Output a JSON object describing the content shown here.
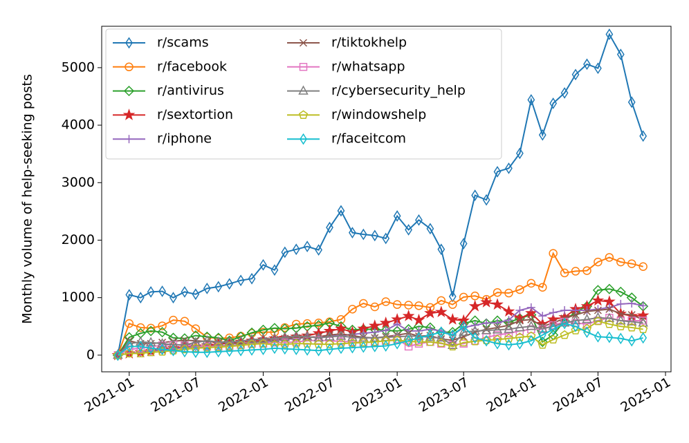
{
  "chart_data": {
    "type": "line",
    "y_label": "Monthly volume of help-seeking posts",
    "x": [
      "2020-12",
      "2021-01",
      "2021-02",
      "2021-03",
      "2021-04",
      "2021-05",
      "2021-06",
      "2021-07",
      "2021-08",
      "2021-09",
      "2021-10",
      "2021-11",
      "2021-12",
      "2022-01",
      "2022-02",
      "2022-03",
      "2022-04",
      "2022-05",
      "2022-06",
      "2022-07",
      "2022-08",
      "2022-09",
      "2022-10",
      "2022-11",
      "2022-12",
      "2023-01",
      "2023-02",
      "2023-03",
      "2023-04",
      "2023-05",
      "2023-06",
      "2023-07",
      "2023-08",
      "2023-09",
      "2023-10",
      "2023-11",
      "2023-12",
      "2024-01",
      "2024-02",
      "2024-03",
      "2024-04",
      "2024-05",
      "2024-06",
      "2024-07",
      "2024-08",
      "2024-09",
      "2024-10",
      "2024-11"
    ],
    "xlim": [
      "2020-10-18",
      "2025-01-16"
    ],
    "xticks": [
      "2021-01",
      "2021-07",
      "2022-01",
      "2022-07",
      "2023-01",
      "2023-07",
      "2024-01",
      "2024-07",
      "2025-01"
    ],
    "ylim": [
      -290,
      5720
    ],
    "yticks": [
      0,
      1000,
      2000,
      3000,
      4000,
      5000
    ],
    "legend_position": "upper left",
    "legend_columns": 2,
    "series": [
      {
        "name": "r/scams",
        "color": "#1f77b4",
        "marker": "d",
        "values": [
          0,
          1050,
          1000,
          1100,
          1110,
          1000,
          1100,
          1060,
          1160,
          1190,
          1240,
          1300,
          1330,
          1570,
          1480,
          1790,
          1840,
          1890,
          1830,
          2220,
          2510,
          2130,
          2100,
          2080,
          2030,
          2420,
          2180,
          2350,
          2200,
          1840,
          1020,
          1940,
          2780,
          2700,
          3190,
          3250,
          3510,
          4440,
          3830,
          4380,
          4560,
          4880,
          5060,
          4990,
          5580,
          5230,
          4400,
          3810
        ]
      },
      {
        "name": "r/facebook",
        "color": "#ff7f0e",
        "marker": "o",
        "values": [
          0,
          550,
          480,
          470,
          510,
          610,
          590,
          460,
          310,
          290,
          300,
          330,
          380,
          400,
          400,
          480,
          540,
          550,
          560,
          580,
          620,
          800,
          900,
          840,
          930,
          880,
          870,
          860,
          830,
          950,
          880,
          1010,
          1030,
          970,
          1090,
          1080,
          1140,
          1250,
          1180,
          1770,
          1430,
          1460,
          1470,
          1620,
          1700,
          1620,
          1590,
          1540
        ]
      },
      {
        "name": "r/antivirus",
        "color": "#2ca02c",
        "marker": "D",
        "values": [
          0,
          310,
          380,
          420,
          400,
          300,
          290,
          340,
          320,
          300,
          250,
          320,
          390,
          440,
          470,
          460,
          470,
          500,
          520,
          560,
          500,
          440,
          450,
          450,
          430,
          420,
          450,
          500,
          480,
          400,
          400,
          550,
          600,
          550,
          600,
          570,
          640,
          700,
          230,
          350,
          600,
          750,
          850,
          1130,
          1150,
          1100,
          1000,
          850
        ]
      },
      {
        "name": "r/sextortion",
        "color": "#d62728",
        "marker": "*",
        "values": [
          0,
          30,
          50,
          70,
          100,
          120,
          150,
          150,
          170,
          190,
          210,
          230,
          250,
          270,
          290,
          300,
          320,
          340,
          380,
          420,
          460,
          400,
          460,
          510,
          560,
          620,
          680,
          610,
          730,
          750,
          620,
          600,
          850,
          920,
          880,
          760,
          640,
          730,
          540,
          620,
          660,
          800,
          850,
          950,
          930,
          720,
          680,
          690
        ]
      },
      {
        "name": "r/iphone",
        "color": "#9467bd",
        "marker": "+",
        "values": [
          0,
          30,
          50,
          70,
          90,
          110,
          130,
          140,
          150,
          160,
          170,
          180,
          200,
          220,
          250,
          270,
          290,
          310,
          320,
          330,
          340,
          360,
          380,
          400,
          430,
          540,
          420,
          420,
          450,
          420,
          350,
          480,
          520,
          560,
          560,
          610,
          780,
          830,
          680,
          740,
          780,
          780,
          780,
          800,
          830,
          890,
          900,
          860
        ]
      },
      {
        "name": "r/tiktokhelp",
        "color": "#8c564b",
        "marker": "x",
        "values": [
          0,
          250,
          200,
          200,
          220,
          240,
          260,
          250,
          240,
          220,
          210,
          200,
          220,
          250,
          270,
          290,
          300,
          310,
          320,
          350,
          370,
          340,
          310,
          300,
          320,
          350,
          380,
          330,
          340,
          280,
          260,
          320,
          400,
          450,
          480,
          520,
          600,
          620,
          500,
          560,
          640,
          700,
          760,
          780,
          800,
          720,
          700,
          620
        ]
      },
      {
        "name": "r/whatsapp",
        "color": "#e377c2",
        "marker": "s",
        "values": [
          0,
          100,
          120,
          150,
          170,
          180,
          170,
          160,
          150,
          150,
          160,
          180,
          200,
          200,
          220,
          220,
          230,
          250,
          260,
          250,
          240,
          230,
          220,
          230,
          250,
          280,
          150,
          200,
          230,
          200,
          180,
          200,
          250,
          310,
          350,
          380,
          420,
          450,
          450,
          520,
          580,
          560,
          540,
          600,
          650,
          600,
          600,
          600
        ]
      },
      {
        "name": "r/cybersecurity_help",
        "color": "#7f7f7f",
        "marker": "^",
        "values": [
          0,
          200,
          230,
          220,
          200,
          180,
          180,
          220,
          250,
          230,
          230,
          240,
          270,
          280,
          290,
          310,
          330,
          320,
          300,
          320,
          330,
          310,
          300,
          300,
          310,
          320,
          330,
          330,
          310,
          300,
          170,
          400,
          420,
          430,
          440,
          450,
          480,
          500,
          460,
          500,
          560,
          600,
          620,
          650,
          640,
          600,
          580,
          560
        ]
      },
      {
        "name": "r/windowshelp",
        "color": "#bcbd22",
        "marker": "p",
        "values": [
          0,
          30,
          30,
          50,
          60,
          80,
          100,
          120,
          130,
          140,
          150,
          170,
          190,
          200,
          180,
          190,
          200,
          200,
          190,
          190,
          200,
          210,
          220,
          230,
          250,
          260,
          240,
          230,
          230,
          210,
          150,
          220,
          240,
          260,
          270,
          290,
          310,
          330,
          180,
          270,
          350,
          430,
          460,
          590,
          540,
          500,
          480,
          450
        ]
      },
      {
        "name": "r/faceitcom",
        "color": "#17becf",
        "marker": "d",
        "values": [
          0,
          150,
          150,
          120,
          100,
          80,
          60,
          50,
          50,
          60,
          70,
          80,
          90,
          100,
          120,
          110,
          100,
          90,
          80,
          100,
          120,
          130,
          140,
          150,
          160,
          200,
          250,
          300,
          350,
          400,
          350,
          500,
          300,
          250,
          200,
          180,
          200,
          250,
          350,
          450,
          550,
          500,
          400,
          320,
          310,
          290,
          250,
          300
        ]
      }
    ]
  }
}
